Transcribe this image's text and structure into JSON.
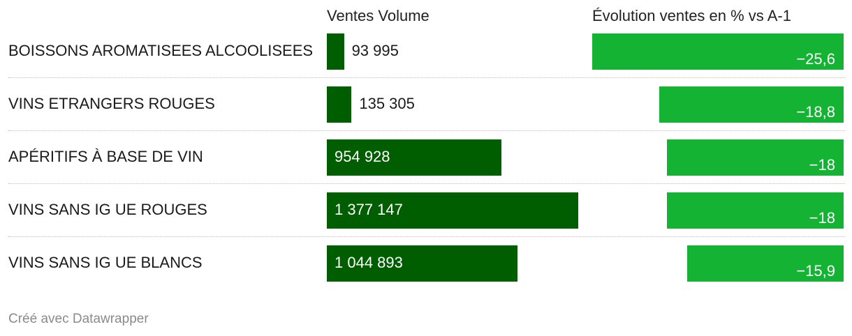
{
  "chart_data": {
    "type": "bar",
    "columns": [
      "Ventes Volume",
      "Évolution ventes en % vs A-1"
    ],
    "categories": [
      "BOISSONS AROMATISEES ALCOOLISEES",
      "VINS ETRANGERS ROUGES",
      "APÉRITIFS À BASE DE VIN",
      "VINS SANS IG UE ROUGES",
      "VINS SANS IG UE BLANCS"
    ],
    "series": [
      {
        "name": "Ventes Volume",
        "values": [
          93995,
          135305,
          954928,
          1377147,
          1044893
        ],
        "labels": [
          "93 995",
          "135 305",
          "954 928",
          "1 377 147",
          "1 044 893"
        ],
        "color": "#005e00"
      },
      {
        "name": "Évolution ventes en % vs A-1",
        "values": [
          -25.6,
          -18.8,
          -18,
          -18,
          -15.9
        ],
        "labels": [
          "−25,6",
          "−18,8",
          "−18",
          "−18",
          "−15,9"
        ],
        "color": "#15b334"
      }
    ]
  },
  "footer": "Créé avec Datawrapper"
}
